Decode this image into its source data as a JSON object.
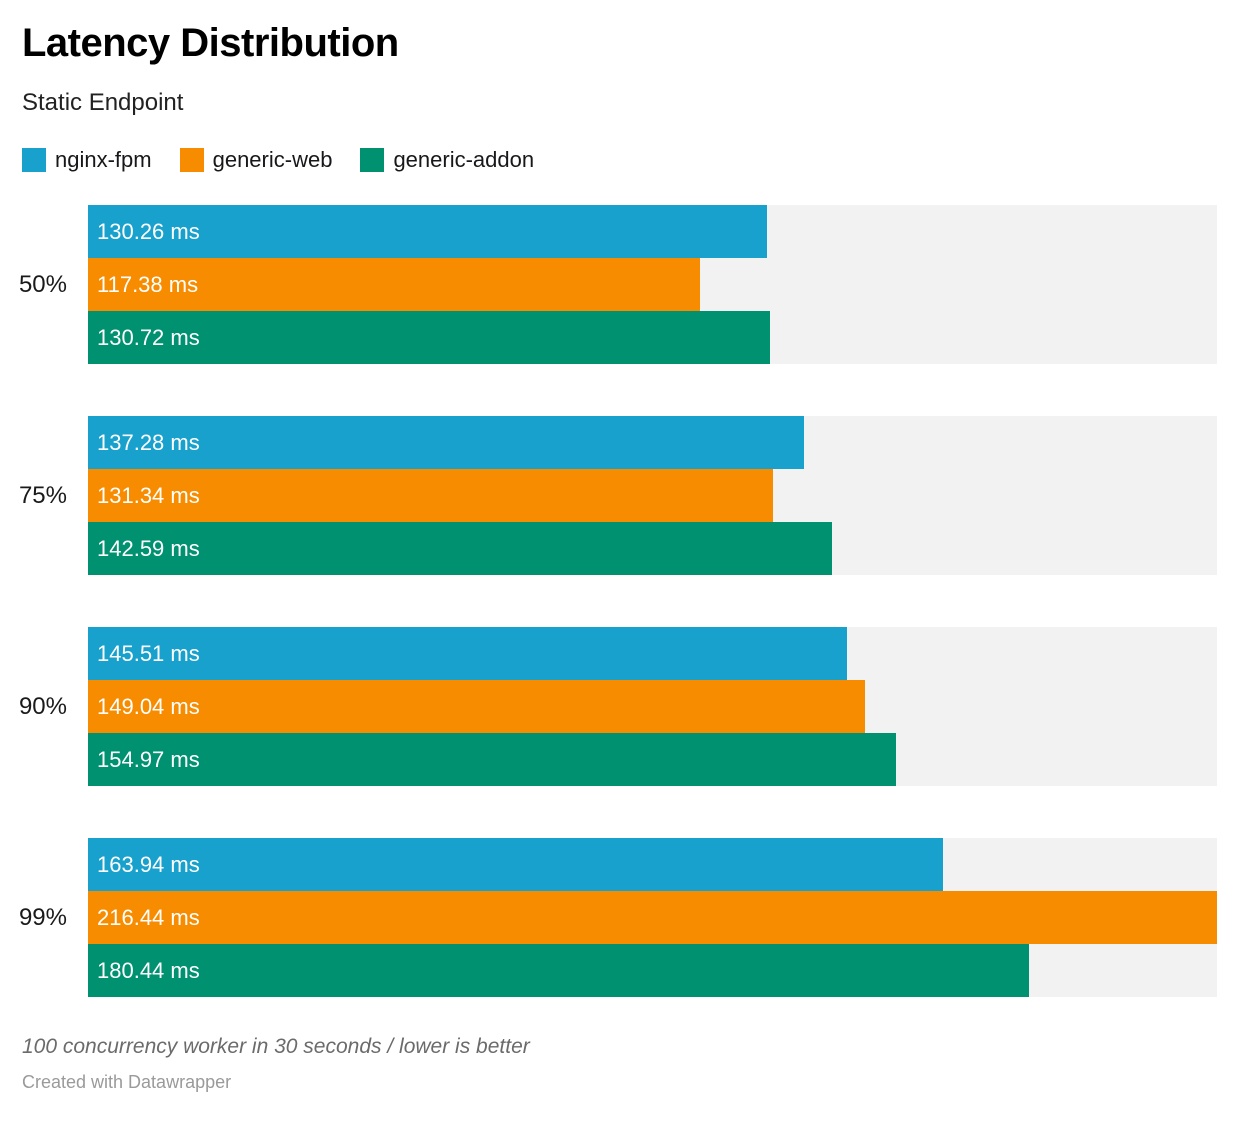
{
  "header": {
    "title": "Latency Distribution",
    "subtitle": "Static Endpoint"
  },
  "chart_data": {
    "type": "bar",
    "orientation": "horizontal",
    "title": "Latency Distribution",
    "subtitle": "Static Endpoint",
    "categories": [
      "50%",
      "75%",
      "90%",
      "99%"
    ],
    "series": [
      {
        "name": "nginx-fpm",
        "color": "#18a1cd",
        "values": [
          130.26,
          137.28,
          145.51,
          163.94
        ],
        "labels": [
          "130.26 ms",
          "137.28 ms",
          "145.51 ms",
          "163.94 ms"
        ]
      },
      {
        "name": "generic-web",
        "color": "#f88c00",
        "values": [
          117.38,
          131.34,
          149.04,
          216.44
        ],
        "labels": [
          "117.38 ms",
          "131.34 ms",
          "149.04 ms",
          "216.44 ms"
        ]
      },
      {
        "name": "generic-addon",
        "color": "#009171",
        "values": [
          130.72,
          142.59,
          154.97,
          180.44
        ],
        "labels": [
          "130.72 ms",
          "142.59 ms",
          "154.97 ms",
          "180.44 ms"
        ]
      }
    ],
    "unit": "ms",
    "xlim": [
      0,
      216.44
    ],
    "grid": false,
    "legend_position": "top",
    "track_color": "#f2f2f2",
    "value_label_color": "#ffffff"
  },
  "footer": {
    "note": "100 concurrency worker in 30 seconds / lower is better",
    "credit": "Created with Datawrapper"
  }
}
